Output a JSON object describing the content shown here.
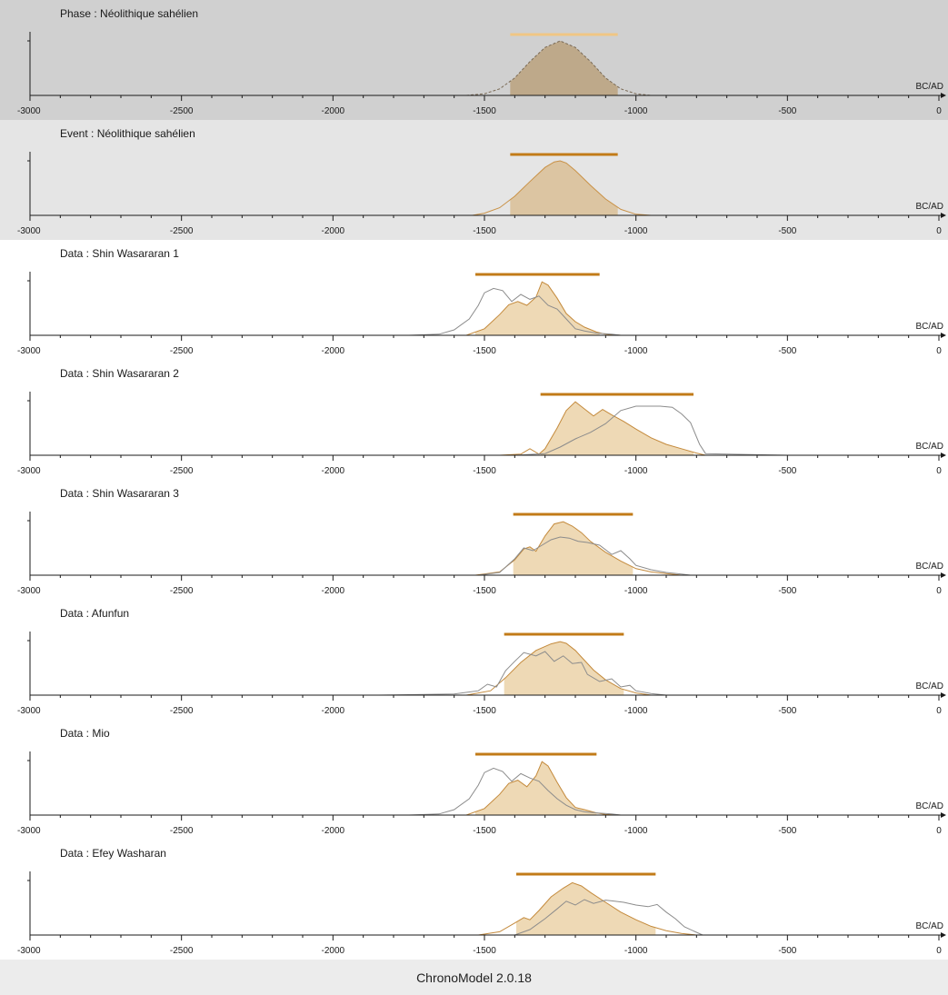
{
  "app": {
    "footer": "ChronoModel 2.0.18"
  },
  "colors": {
    "phase_background": "#d0d0d0",
    "event_background": "#e5e5e5",
    "data_background": "#ffffff",
    "footer_background": "#ececec",
    "phase_fill": "#bea98a",
    "phase_interval_bar": "#f0c684",
    "event_fill": "#dcc5a2",
    "event_line": "#c99146",
    "data_fill": "#eed9b5",
    "data_line": "#c48a3c",
    "interval_bar": "#c27b18",
    "calibration_line": "#8c8c8c",
    "axis": "#1a1a1a"
  },
  "chart_data": [
    {
      "type": "area",
      "panel": "phase",
      "title": "Phase : Néolithique sahélien",
      "xlabel": "BC/AD",
      "xlim": [
        -3000,
        0
      ],
      "x_ticks": [
        "-3000",
        "-2500",
        "-2000",
        "-1500",
        "-1000",
        "-500",
        "0"
      ],
      "interval": [
        -1415,
        -1060
      ],
      "series": [
        {
          "role": "posterior-density",
          "style": "dashed-envelope-filled-in-interval",
          "x": [
            -1560,
            -1500,
            -1450,
            -1400,
            -1350,
            -1300,
            -1250,
            -1200,
            -1150,
            -1100,
            -1050,
            -1000,
            -950
          ],
          "y": [
            0,
            0.03,
            0.12,
            0.32,
            0.62,
            0.88,
            1.0,
            0.88,
            0.62,
            0.32,
            0.12,
            0.03,
            0
          ]
        }
      ]
    },
    {
      "type": "area",
      "panel": "event",
      "title": "Event : Néolithique sahélien",
      "xlabel": "BC/AD",
      "xlim": [
        -3000,
        0
      ],
      "x_ticks": [
        "-3000",
        "-2500",
        "-2000",
        "-1500",
        "-1000",
        "-500",
        "0"
      ],
      "interval": [
        -1415,
        -1060
      ],
      "series": [
        {
          "role": "posterior-density",
          "x": [
            -1540,
            -1500,
            -1450,
            -1400,
            -1350,
            -1300,
            -1270,
            -1250,
            -1230,
            -1200,
            -1150,
            -1100,
            -1050,
            -1000,
            -950
          ],
          "y": [
            0,
            0.04,
            0.14,
            0.35,
            0.62,
            0.88,
            0.98,
            1.0,
            0.96,
            0.82,
            0.55,
            0.3,
            0.11,
            0.02,
            0
          ]
        }
      ]
    },
    {
      "type": "area",
      "panel": "data",
      "title": "Data : Shin Wasararan 1",
      "xlabel": "BC/AD",
      "xlim": [
        -3000,
        0
      ],
      "x_ticks": [
        "-3000",
        "-2500",
        "-2000",
        "-1500",
        "-1000",
        "-500",
        "0"
      ],
      "interval": [
        -1530,
        -1120
      ],
      "series": [
        {
          "role": "posterior-density",
          "x": [
            -1560,
            -1500,
            -1450,
            -1420,
            -1390,
            -1360,
            -1330,
            -1310,
            -1290,
            -1260,
            -1230,
            -1200,
            -1170,
            -1130,
            -1100,
            -1050
          ],
          "y": [
            0,
            0.12,
            0.38,
            0.56,
            0.62,
            0.55,
            0.7,
            0.98,
            0.92,
            0.68,
            0.4,
            0.25,
            0.15,
            0.06,
            0.02,
            0
          ]
        },
        {
          "role": "calibrated-date",
          "x": [
            -1750,
            -1650,
            -1600,
            -1550,
            -1520,
            -1500,
            -1470,
            -1440,
            -1410,
            -1380,
            -1350,
            -1320,
            -1290,
            -1260,
            -1230,
            -1200,
            -1170,
            -1130,
            -1080,
            -1050
          ],
          "y": [
            0,
            0.02,
            0.1,
            0.3,
            0.55,
            0.78,
            0.86,
            0.82,
            0.62,
            0.75,
            0.66,
            0.72,
            0.55,
            0.48,
            0.3,
            0.12,
            0.08,
            0.04,
            0.02,
            0
          ]
        }
      ]
    },
    {
      "type": "area",
      "panel": "data",
      "title": "Data : Shin Wasararan 2",
      "xlabel": "BC/AD",
      "xlim": [
        -3000,
        0
      ],
      "x_ticks": [
        "-3000",
        "-2500",
        "-2000",
        "-1500",
        "-1000",
        "-500",
        "0"
      ],
      "interval": [
        -1315,
        -810
      ],
      "series": [
        {
          "role": "posterior-density",
          "x": [
            -1450,
            -1380,
            -1350,
            -1320,
            -1300,
            -1260,
            -1230,
            -1200,
            -1170,
            -1140,
            -1110,
            -1080,
            -1040,
            -1000,
            -950,
            -900,
            -850,
            -800,
            -770
          ],
          "y": [
            0,
            0.02,
            0.12,
            0.02,
            0.12,
            0.5,
            0.82,
            0.98,
            0.85,
            0.72,
            0.84,
            0.74,
            0.62,
            0.48,
            0.32,
            0.2,
            0.12,
            0.04,
            0
          ]
        },
        {
          "role": "calibrated-date",
          "x": [
            -1400,
            -1300,
            -1250,
            -1200,
            -1150,
            -1100,
            -1050,
            -1000,
            -950,
            -920,
            -880,
            -850,
            -820,
            -790,
            -770,
            -700,
            -600,
            -500
          ],
          "y": [
            0,
            0.03,
            0.15,
            0.3,
            0.42,
            0.58,
            0.82,
            0.9,
            0.9,
            0.9,
            0.88,
            0.76,
            0.6,
            0.2,
            0.03,
            0.02,
            0.01,
            0
          ]
        }
      ]
    },
    {
      "type": "area",
      "panel": "data",
      "title": "Data : Shin Wasararan 3",
      "xlabel": "BC/AD",
      "xlim": [
        -3000,
        0
      ],
      "x_ticks": [
        "-3000",
        "-2500",
        "-2000",
        "-1500",
        "-1000",
        "-500",
        "0"
      ],
      "interval": [
        -1405,
        -1010
      ],
      "series": [
        {
          "role": "posterior-density",
          "x": [
            -1530,
            -1450,
            -1400,
            -1370,
            -1350,
            -1330,
            -1300,
            -1270,
            -1240,
            -1210,
            -1180,
            -1150,
            -1100,
            -1050,
            -1000,
            -950,
            -900,
            -850
          ],
          "y": [
            0,
            0.06,
            0.28,
            0.48,
            0.52,
            0.44,
            0.72,
            0.94,
            0.98,
            0.9,
            0.78,
            0.62,
            0.42,
            0.26,
            0.12,
            0.06,
            0.03,
            0
          ]
        },
        {
          "role": "calibrated-date",
          "x": [
            -1520,
            -1450,
            -1400,
            -1370,
            -1340,
            -1310,
            -1280,
            -1250,
            -1220,
            -1190,
            -1160,
            -1120,
            -1080,
            -1050,
            -1020,
            -1000,
            -950,
            -900,
            -850,
            -820
          ],
          "y": [
            0,
            0.05,
            0.3,
            0.5,
            0.45,
            0.55,
            0.65,
            0.7,
            0.68,
            0.62,
            0.6,
            0.55,
            0.38,
            0.45,
            0.3,
            0.18,
            0.1,
            0.05,
            0.02,
            0
          ]
        }
      ]
    },
    {
      "type": "area",
      "panel": "data",
      "title": "Data : Afunfun",
      "xlabel": "BC/AD",
      "xlim": [
        -3000,
        0
      ],
      "x_ticks": [
        "-3000",
        "-2500",
        "-2000",
        "-1500",
        "-1000",
        "-500",
        "0"
      ],
      "interval": [
        -1435,
        -1040
      ],
      "series": [
        {
          "role": "posterior-density",
          "x": [
            -1560,
            -1480,
            -1430,
            -1380,
            -1330,
            -1280,
            -1250,
            -1230,
            -1200,
            -1170,
            -1140,
            -1100,
            -1050,
            -1000,
            -950
          ],
          "y": [
            0,
            0.08,
            0.32,
            0.6,
            0.82,
            0.94,
            0.98,
            0.95,
            0.82,
            0.64,
            0.46,
            0.28,
            0.12,
            0.04,
            0
          ]
        },
        {
          "role": "calibrated-date",
          "x": [
            -1850,
            -1600,
            -1520,
            -1490,
            -1460,
            -1430,
            -1400,
            -1370,
            -1330,
            -1300,
            -1270,
            -1240,
            -1210,
            -1180,
            -1160,
            -1120,
            -1080,
            -1050,
            -1020,
            -1000,
            -950,
            -900
          ],
          "y": [
            0,
            0.02,
            0.08,
            0.2,
            0.15,
            0.45,
            0.62,
            0.78,
            0.72,
            0.8,
            0.62,
            0.72,
            0.58,
            0.6,
            0.38,
            0.25,
            0.3,
            0.15,
            0.18,
            0.08,
            0.03,
            0
          ]
        }
      ]
    },
    {
      "type": "area",
      "panel": "data",
      "title": "Data : Mio",
      "xlabel": "BC/AD",
      "xlim": [
        -3000,
        0
      ],
      "x_ticks": [
        "-3000",
        "-2500",
        "-2000",
        "-1500",
        "-1000",
        "-500",
        "0"
      ],
      "interval": [
        -1530,
        -1130
      ],
      "series": [
        {
          "role": "posterior-density",
          "x": [
            -1560,
            -1500,
            -1450,
            -1420,
            -1390,
            -1360,
            -1330,
            -1310,
            -1290,
            -1260,
            -1230,
            -1200,
            -1170,
            -1130,
            -1100,
            -1050
          ],
          "y": [
            0,
            0.12,
            0.38,
            0.58,
            0.64,
            0.52,
            0.72,
            0.98,
            0.9,
            0.6,
            0.32,
            0.14,
            0.1,
            0.04,
            0.01,
            0
          ]
        },
        {
          "role": "calibrated-date",
          "x": [
            -1750,
            -1650,
            -1600,
            -1550,
            -1520,
            -1500,
            -1470,
            -1440,
            -1410,
            -1380,
            -1350,
            -1320,
            -1290,
            -1260,
            -1230,
            -1200,
            -1170,
            -1130,
            -1080,
            -1050
          ],
          "y": [
            0,
            0.02,
            0.1,
            0.3,
            0.55,
            0.78,
            0.86,
            0.8,
            0.62,
            0.76,
            0.68,
            0.62,
            0.45,
            0.3,
            0.18,
            0.1,
            0.06,
            0.04,
            0.02,
            0
          ]
        }
      ]
    },
    {
      "type": "area",
      "panel": "data",
      "title": "Data : Efey Washaran",
      "xlabel": "BC/AD",
      "xlim": [
        -3000,
        0
      ],
      "x_ticks": [
        "-3000",
        "-2500",
        "-2000",
        "-1500",
        "-1000",
        "-500",
        "0"
      ],
      "interval": [
        -1395,
        -935
      ],
      "series": [
        {
          "role": "posterior-density",
          "x": [
            -1520,
            -1450,
            -1400,
            -1370,
            -1350,
            -1320,
            -1280,
            -1240,
            -1210,
            -1180,
            -1150,
            -1100,
            -1050,
            -1000,
            -950,
            -900,
            -850,
            -800
          ],
          "y": [
            0,
            0.06,
            0.22,
            0.32,
            0.28,
            0.45,
            0.7,
            0.86,
            0.96,
            0.9,
            0.78,
            0.6,
            0.42,
            0.28,
            0.16,
            0.08,
            0.03,
            0
          ]
        },
        {
          "role": "calibrated-date",
          "x": [
            -1400,
            -1350,
            -1300,
            -1260,
            -1230,
            -1200,
            -1170,
            -1140,
            -1100,
            -1070,
            -1040,
            -1000,
            -960,
            -930,
            -900,
            -870,
            -840,
            -800,
            -780
          ],
          "y": [
            0,
            0.1,
            0.3,
            0.48,
            0.62,
            0.55,
            0.65,
            0.58,
            0.64,
            0.62,
            0.6,
            0.55,
            0.52,
            0.56,
            0.42,
            0.3,
            0.15,
            0.05,
            0
          ]
        }
      ]
    }
  ]
}
